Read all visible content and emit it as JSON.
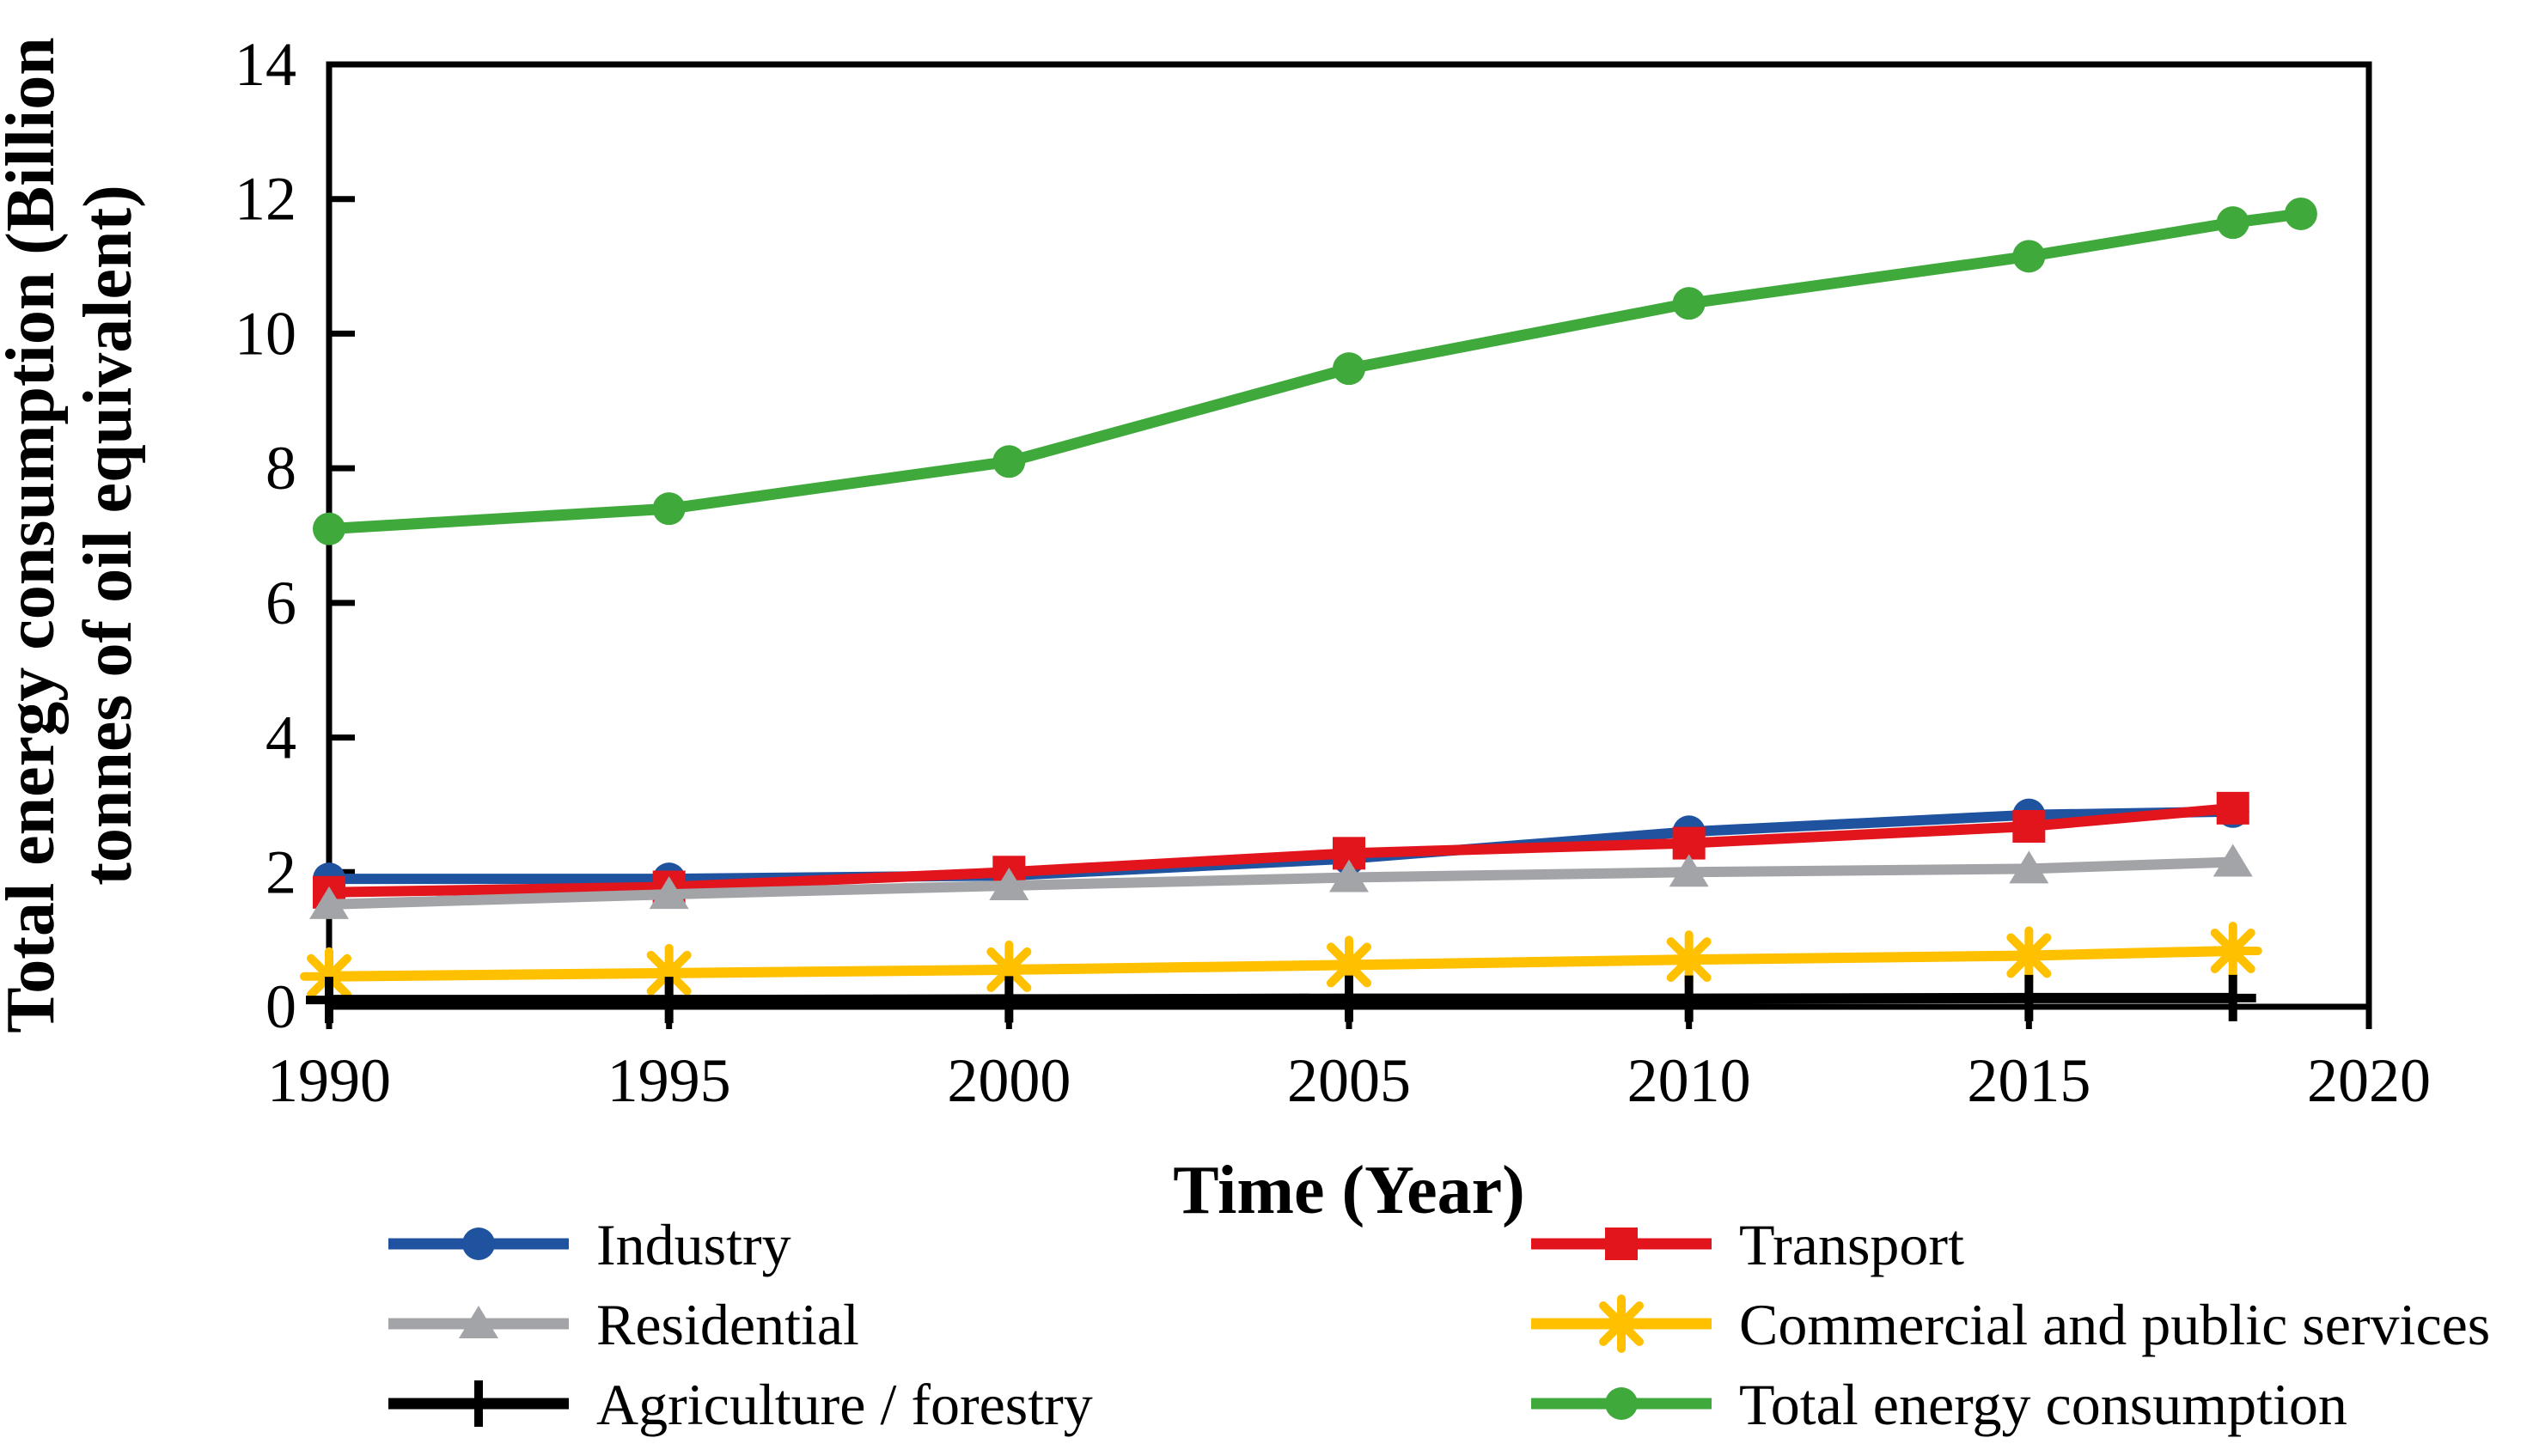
{
  "chart_data": {
    "type": "line",
    "title": "",
    "xlabel": "Time (Year)",
    "ylabel": "Total energy consumption (Billion tonnes of oil equivalent)",
    "ylabel_lines": [
      "Total energy consumption (Billion",
      "tonnes of oil equivalent)"
    ],
    "xlim": [
      1990,
      2020
    ],
    "ylim": [
      0,
      14
    ],
    "x_ticks": [
      1990,
      1995,
      2000,
      2005,
      2010,
      2015,
      2020
    ],
    "y_ticks": [
      0,
      2,
      4,
      6,
      8,
      10,
      12,
      14
    ],
    "grid": false,
    "legend_position": "bottom",
    "axis_color": "#000000",
    "background_color": "#ffffff",
    "series": [
      {
        "id": "industry",
        "name": "Industry",
        "color": "#1F53A0",
        "marker": "circle",
        "x": [
          1990,
          1995,
          2000,
          2005,
          2010,
          2015,
          2018
        ],
        "values": [
          1.9,
          1.9,
          1.95,
          2.2,
          2.6,
          2.85,
          2.9
        ]
      },
      {
        "id": "transport",
        "name": "Transport",
        "color": "#E2141C",
        "marker": "square",
        "x": [
          1990,
          1995,
          2000,
          2005,
          2010,
          2015,
          2018
        ],
        "values": [
          1.7,
          1.78,
          2.0,
          2.28,
          2.43,
          2.68,
          2.95
        ]
      },
      {
        "id": "residential",
        "name": "Residential",
        "color": "#A2A4A7",
        "marker": "triangle",
        "x": [
          1990,
          1995,
          2000,
          2005,
          2010,
          2015,
          2018
        ],
        "values": [
          1.52,
          1.67,
          1.8,
          1.92,
          2.0,
          2.05,
          2.15
        ]
      },
      {
        "id": "commercial",
        "name": "Commercial and public services",
        "color": "#FFC000",
        "marker": "asterisk",
        "x": [
          1990,
          1995,
          2000,
          2005,
          2010,
          2015,
          2018
        ],
        "values": [
          0.45,
          0.5,
          0.55,
          0.62,
          0.7,
          0.76,
          0.83
        ]
      },
      {
        "id": "agriculture",
        "name": "Agriculture / forestry",
        "color": "#000000",
        "marker": "plus",
        "x": [
          1990,
          1995,
          2000,
          2005,
          2010,
          2015,
          2018
        ],
        "values": [
          0.1,
          0.1,
          0.11,
          0.12,
          0.12,
          0.13,
          0.13
        ]
      },
      {
        "id": "total",
        "name": "Total energy consumption",
        "color": "#3FA93C",
        "marker": "circle",
        "x": [
          1990,
          1995,
          2000,
          2005,
          2010,
          2015,
          2018,
          2019
        ],
        "values": [
          7.1,
          7.4,
          8.1,
          9.48,
          10.45,
          11.15,
          11.65,
          11.78
        ]
      }
    ],
    "legend_columns": [
      [
        "industry",
        "residential",
        "agriculture"
      ],
      [
        "transport",
        "commercial",
        "total"
      ]
    ]
  }
}
